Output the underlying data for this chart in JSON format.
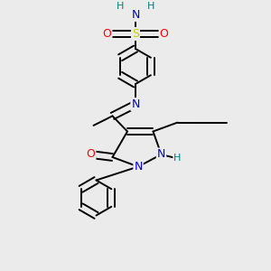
{
  "bg_color": "#ebebeb",
  "atom_colors": {
    "C": "#000000",
    "N": "#0000cc",
    "O": "#ff0000",
    "S": "#cccc00",
    "H": "#008080"
  },
  "figsize": [
    3.0,
    3.0
  ],
  "dpi": 100
}
